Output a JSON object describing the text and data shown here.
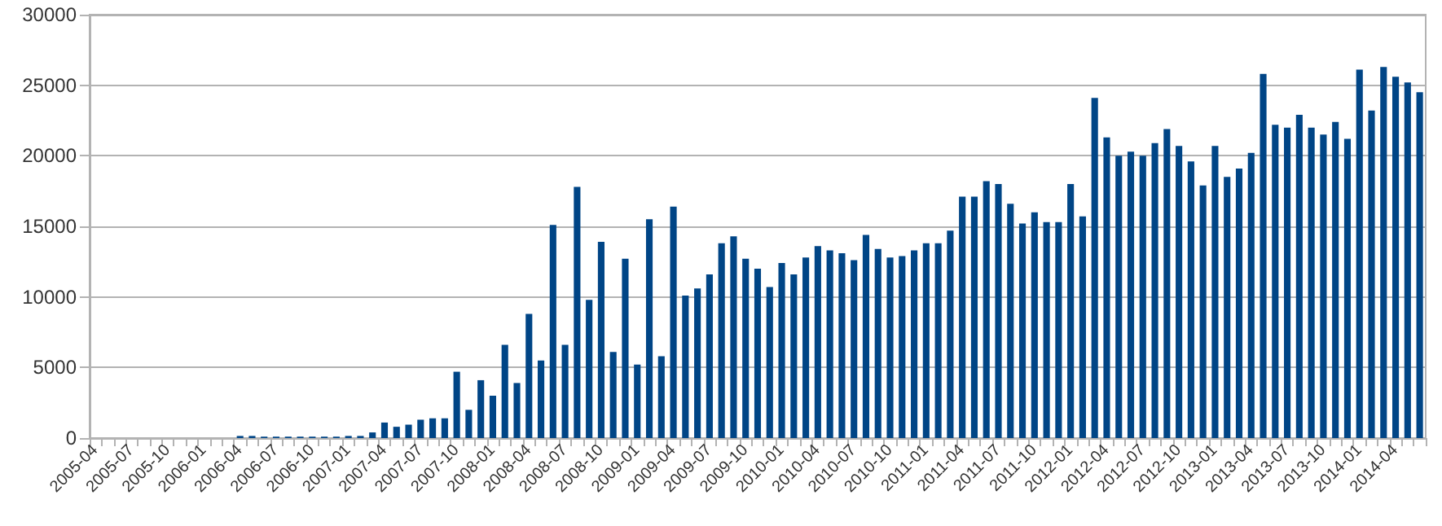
{
  "chart_data": {
    "type": "bar",
    "color": "#004586",
    "grid": "y",
    "categories": [
      "2005-04",
      null,
      null,
      "2005-07",
      null,
      null,
      "2005-10",
      null,
      null,
      "2006-01",
      null,
      null,
      "2006-04",
      null,
      null,
      "2006-07",
      null,
      null,
      "2006-10",
      null,
      null,
      "2007-01",
      null,
      null,
      "2007-04",
      null,
      null,
      "2007-07",
      null,
      null,
      "2007-10",
      null,
      null,
      "2008-01",
      null,
      null,
      "2008-04",
      null,
      null,
      "2008-07",
      null,
      null,
      "2008-10",
      null,
      null,
      "2009-01",
      null,
      null,
      "2009-04",
      null,
      null,
      "2009-07",
      null,
      null,
      "2009-10",
      null,
      null,
      "2010-01",
      null,
      null,
      "2010-04",
      null,
      null,
      "2010-07",
      null,
      null,
      "2010-10",
      null,
      null,
      "2011-01",
      null,
      null,
      "2011-04",
      null,
      null,
      "2011-07",
      null,
      null,
      "2011-10",
      null,
      null,
      "2012-01",
      null,
      null,
      "2012-04",
      null,
      null,
      "2012-07",
      null,
      null,
      "2012-10",
      null,
      null,
      "2013-01",
      null,
      null,
      "2013-04",
      null,
      null,
      "2013-07",
      null,
      null,
      "2013-10",
      null,
      null,
      "2014-01",
      null,
      null,
      "2014-04",
      null,
      null
    ],
    "values": [
      0,
      0,
      0,
      0,
      0,
      0,
      0,
      0,
      0,
      0,
      0,
      0,
      150,
      150,
      100,
      100,
      100,
      100,
      100,
      100,
      100,
      150,
      150,
      400,
      1100,
      800,
      950,
      1300,
      1400,
      1400,
      4700,
      2000,
      4100,
      3000,
      6600,
      3900,
      8800,
      5500,
      15100,
      6600,
      17800,
      9800,
      13900,
      6100,
      12700,
      5200,
      15500,
      5800,
      16400,
      10100,
      10600,
      11600,
      13800,
      14300,
      12700,
      12000,
      10700,
      12400,
      11600,
      12800,
      13600,
      13300,
      13100,
      12600,
      14400,
      13400,
      12800,
      12900,
      13300,
      13800,
      13800,
      14700,
      17100,
      17100,
      18200,
      18000,
      16600,
      15200,
      16000,
      15300,
      15300,
      18000,
      15700,
      24100,
      21300,
      20000,
      20300,
      20000,
      20900,
      21900,
      20700,
      19600,
      17900,
      20700,
      18500,
      19100,
      20200,
      25800,
      22200,
      22000,
      22900,
      22000,
      21500,
      22400,
      21200,
      26100,
      23200,
      26300,
      25600,
      25200,
      24500
    ],
    "ylim": [
      0,
      30000
    ],
    "yticks": [
      0,
      5000,
      10000,
      15000,
      20000,
      25000,
      30000
    ]
  }
}
